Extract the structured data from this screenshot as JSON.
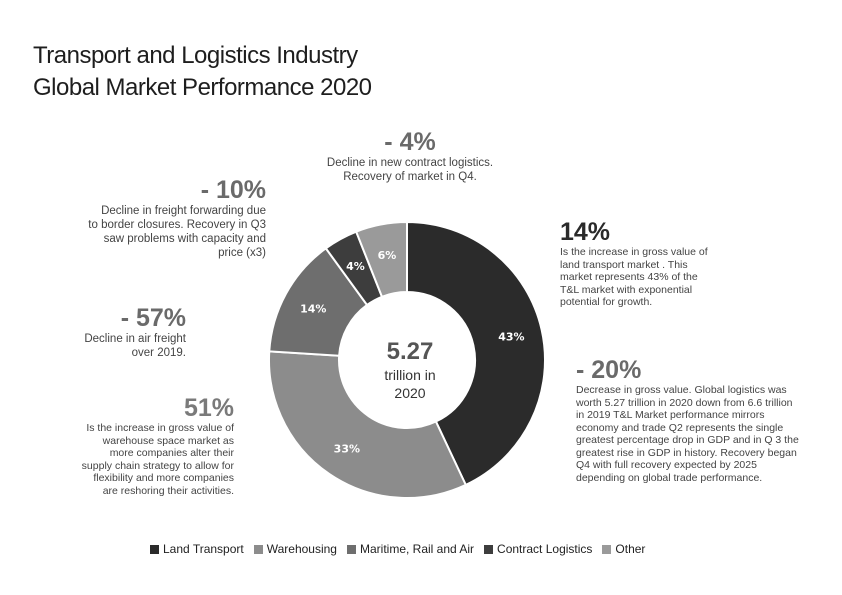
{
  "title": {
    "line1": "Transport and Logistics Industry",
    "line2": "Global Market Performance 2020"
  },
  "center": {
    "value": "5.27",
    "line1": "trillion in",
    "line2": "2020"
  },
  "annotations": {
    "contract": {
      "value": "- 4%",
      "text": [
        "Decline in new contract logistics.",
        "Recovery of market in Q4."
      ]
    },
    "freight": {
      "value": "- 10%",
      "text": [
        "Decline in freight forwarding  due",
        "to border closures. Recovery in Q3",
        "saw problems with capacity and",
        "price (x3)"
      ]
    },
    "land": {
      "value": "14%",
      "text": [
        "Is the increase in gross value of",
        "land transport market . This",
        "market represents 43% of the",
        "T&L market with exponential",
        "potential for growth."
      ]
    },
    "air": {
      "value": "- 57%",
      "text": [
        "Decline in air freight",
        "over 2019."
      ]
    },
    "warehouse": {
      "value": "51%",
      "text": [
        "Is the increase in gross value of",
        "warehouse space market as",
        "more companies alter their",
        "supply chain strategy to allow for",
        "flexibility and more companies",
        "are reshoring their activities."
      ]
    },
    "gross": {
      "value": "- 20%",
      "text": [
        "Decrease in gross value. Global logistics was",
        "worth 5.27 trillion in 2020 down from 6.6 trillion",
        "in 2019   T&L Market performance mirrors",
        "economy and trade  Q2 represents the single",
        "greatest percentage drop in GDP and in Q 3 the",
        "greatest rise in GDP  in history. Recovery began",
        "Q4 with full recovery expected by 2025",
        "depending on global trade performance."
      ]
    }
  },
  "chart_data": {
    "type": "pie",
    "donut": true,
    "categories": [
      "Land Transport",
      "Warehousing",
      "Maritime, Rail and Air",
      "Contract Logistics",
      "Other"
    ],
    "values": [
      43,
      33,
      14,
      4,
      6
    ],
    "labels": [
      "43%",
      "33%",
      "14%",
      "4%",
      "6%"
    ],
    "colors": [
      "#2b2b2b",
      "#8c8c8c",
      "#6e6e6e",
      "#3d3d3d",
      "#9a9a9a"
    ],
    "legend": "bottom"
  }
}
